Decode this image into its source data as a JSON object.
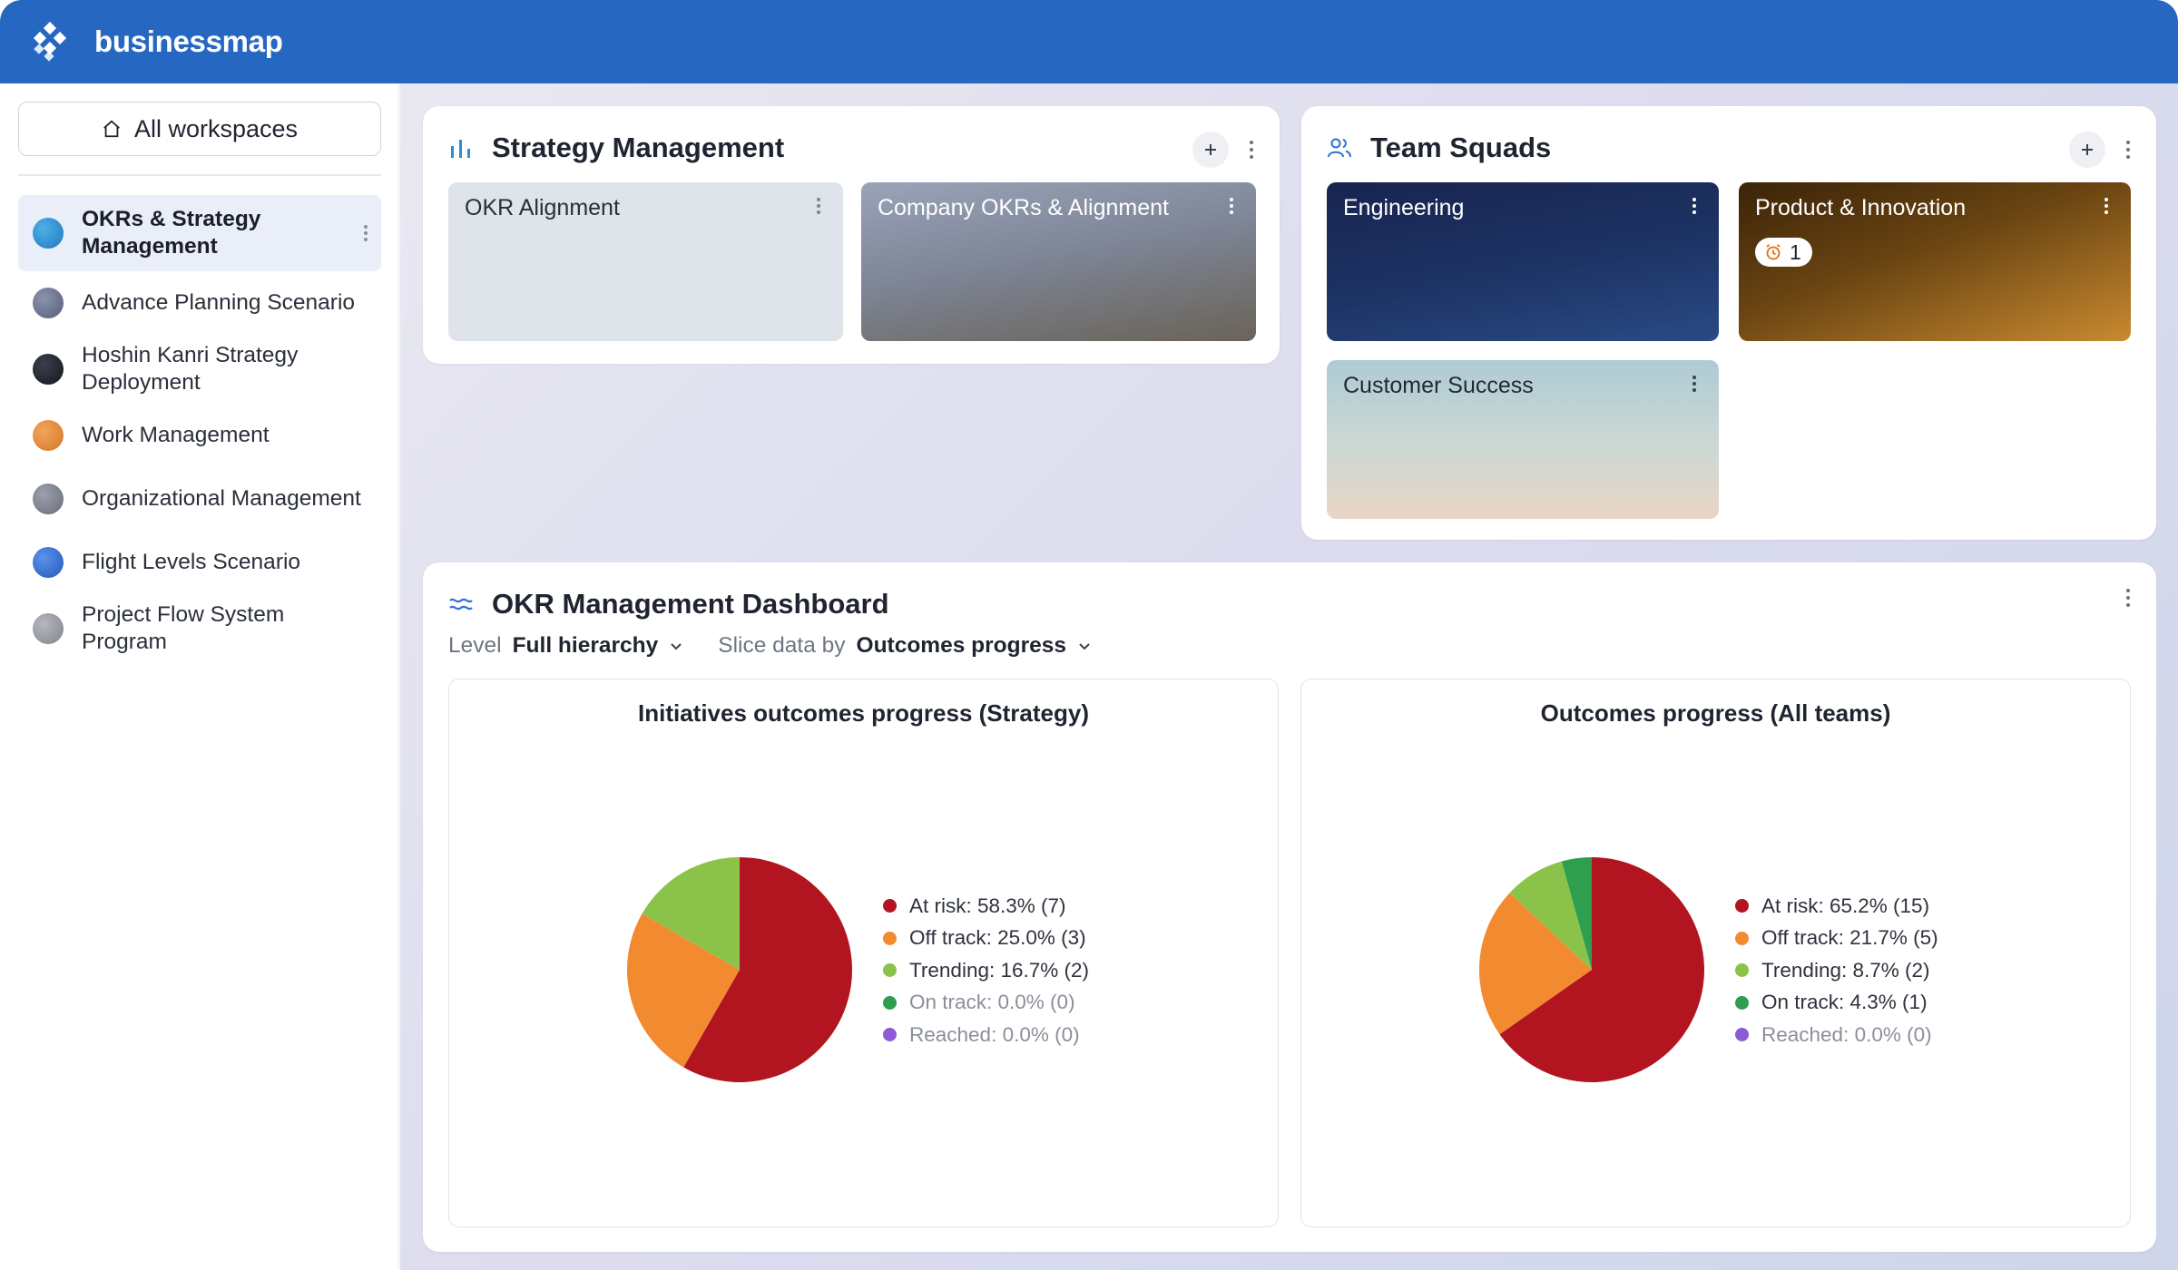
{
  "app": {
    "brand": "businessmap"
  },
  "sidebar": {
    "all_workspaces": "All workspaces",
    "workspaces": [
      {
        "label": "OKRs & Strategy Management",
        "color": "#2d8fd0",
        "active": true
      },
      {
        "label": "Advance Planning Scenario",
        "color": "#6e7690"
      },
      {
        "label": "Hoshin Kanri Strategy Deployment",
        "color": "#1f2430"
      },
      {
        "label": "Work Management",
        "color": "#e08a3c"
      },
      {
        "label": "Organizational Management",
        "color": "#7d8290"
      },
      {
        "label": "Flight Levels Scenario",
        "color": "#3a72d6"
      },
      {
        "label": "Project Flow System Program",
        "color": "#9a9ca6"
      }
    ]
  },
  "strategy": {
    "title": "Strategy Management",
    "boards": [
      {
        "title": "OKR Alignment"
      },
      {
        "title": "Company OKRs & Alignment"
      }
    ]
  },
  "squads": {
    "title": "Team Squads",
    "boards": [
      {
        "title": "Engineering"
      },
      {
        "title": "Product & Innovation",
        "badge": "1"
      },
      {
        "title": "Customer Success"
      }
    ]
  },
  "dashboard": {
    "title": "OKR Management Dashboard",
    "level_label": "Level",
    "level_value": "Full hierarchy",
    "slice_label": "Slice data by",
    "slice_value": "Outcomes progress"
  },
  "chart_data": [
    {
      "type": "pie",
      "title": "Initiatives outcomes progress (Strategy)",
      "slices": [
        {
          "label": "At risk: 58.3% (7)",
          "value": 58.3,
          "color": "#b2151f"
        },
        {
          "label": "Off track: 25.0% (3)",
          "value": 25.0,
          "color": "#f28a30"
        },
        {
          "label": "Trending: 16.7% (2)",
          "value": 16.7,
          "color": "#8bc34a"
        },
        {
          "label": "On track: 0.0% (0)",
          "value": 0.0,
          "color": "#2e9e4f"
        },
        {
          "label": "Reached: 0.0% (0)",
          "value": 0.0,
          "color": "#8e5bd6"
        }
      ]
    },
    {
      "type": "pie",
      "title": "Outcomes progress (All teams)",
      "slices": [
        {
          "label": "At risk: 65.2% (15)",
          "value": 65.2,
          "color": "#b2151f"
        },
        {
          "label": "Off track: 21.7% (5)",
          "value": 21.7,
          "color": "#f28a30"
        },
        {
          "label": "Trending: 8.7% (2)",
          "value": 8.7,
          "color": "#8bc34a"
        },
        {
          "label": "On track: 4.3% (1)",
          "value": 4.3,
          "color": "#2e9e4f"
        },
        {
          "label": "Reached: 0.0% (0)",
          "value": 0.0,
          "color": "#8e5bd6"
        }
      ]
    }
  ]
}
